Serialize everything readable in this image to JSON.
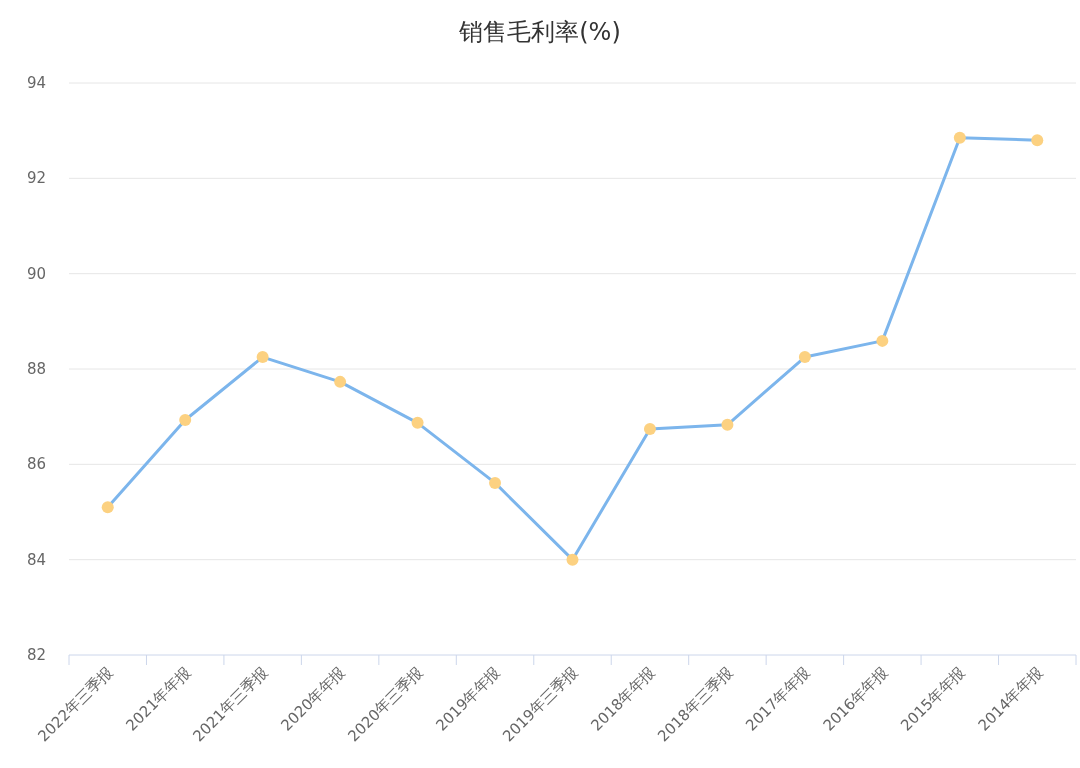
{
  "chart_data": {
    "type": "line",
    "title": "销售毛利率(%)",
    "categories": [
      "2022年三季报",
      "2021年年报",
      "2021年三季报",
      "2020年年报",
      "2020年三季报",
      "2019年年报",
      "2019年三季报",
      "2018年年报",
      "2018年三季报",
      "2017年年报",
      "2016年年报",
      "2015年年报",
      "2014年年报"
    ],
    "series": [
      {
        "color": "#7cb5ec",
        "colors": [
          "#fcd181",
          "#fcd181",
          "#fcd181",
          "#fcd181",
          "#fcd181",
          "#fcd181",
          "#fcd181",
          "#fcd181",
          "#fcd181",
          "#fcd181",
          "#fcd181",
          "#fcd181",
          "#fcd181"
        ],
        "values": [
          85.1,
          86.93,
          88.25,
          87.73,
          86.87,
          85.61,
          84.0,
          86.74,
          86.83,
          88.25,
          88.59,
          92.85,
          92.8
        ]
      }
    ],
    "ylim": [
      82,
      94
    ],
    "yticks": [
      82,
      84,
      86,
      88,
      90,
      92,
      94
    ],
    "grid": "y",
    "marker": "circle"
  }
}
